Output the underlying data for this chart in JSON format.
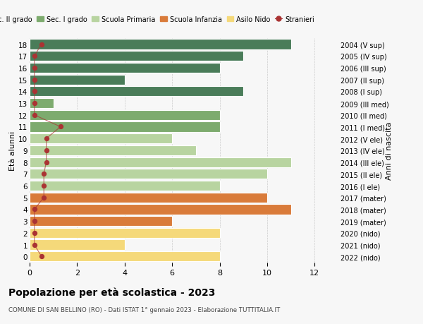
{
  "ages": [
    18,
    17,
    16,
    15,
    14,
    13,
    12,
    11,
    10,
    9,
    8,
    7,
    6,
    5,
    4,
    3,
    2,
    1,
    0
  ],
  "right_labels": [
    "2004 (V sup)",
    "2005 (IV sup)",
    "2006 (III sup)",
    "2007 (II sup)",
    "2008 (I sup)",
    "2009 (III med)",
    "2010 (II med)",
    "2011 (I med)",
    "2012 (V ele)",
    "2013 (IV ele)",
    "2014 (III ele)",
    "2015 (II ele)",
    "2016 (I ele)",
    "2017 (mater)",
    "2018 (mater)",
    "2019 (mater)",
    "2020 (nido)",
    "2021 (nido)",
    "2022 (nido)"
  ],
  "bar_values": [
    11,
    9,
    8,
    4,
    9,
    1,
    8,
    8,
    6,
    7,
    11,
    10,
    8,
    10,
    11,
    6,
    8,
    4,
    8
  ],
  "bar_colors": [
    "#4a7c59",
    "#4a7c59",
    "#4a7c59",
    "#4a7c59",
    "#4a7c59",
    "#7dab6e",
    "#7dab6e",
    "#7dab6e",
    "#b8d4a0",
    "#b8d4a0",
    "#b8d4a0",
    "#b8d4a0",
    "#b8d4a0",
    "#d97b3a",
    "#d97b3a",
    "#d97b3a",
    "#f5d97a",
    "#f5d97a",
    "#f5d97a"
  ],
  "stranieri_x": [
    0.5,
    0.2,
    0.2,
    0.2,
    0.2,
    0.2,
    0.2,
    1.3,
    0.7,
    0.7,
    0.7,
    0.6,
    0.6,
    0.6,
    0.2,
    0.2,
    0.2,
    0.2,
    0.5
  ],
  "color_sec2": "#4a7c59",
  "color_sec1": "#7dab6e",
  "color_prim": "#b8d4a0",
  "color_infanzia": "#d97b3a",
  "color_nido": "#f5d97a",
  "color_stranieri": "#aa3333",
  "title": "Popolazione per età scolastica - 2023",
  "subtitle": "COMUNE DI SAN BELLINO (RO) - Dati ISTAT 1° gennaio 2023 - Elaborazione TUTTITALIA.IT",
  "ylabel_left": "Età alunni",
  "ylabel_right": "Anni di nascita",
  "xlim": [
    0,
    13
  ],
  "bg_color": "#f7f7f7",
  "legend_labels": [
    "Sec. II grado",
    "Sec. I grado",
    "Scuola Primaria",
    "Scuola Infanzia",
    "Asilo Nido",
    "Stranieri"
  ]
}
